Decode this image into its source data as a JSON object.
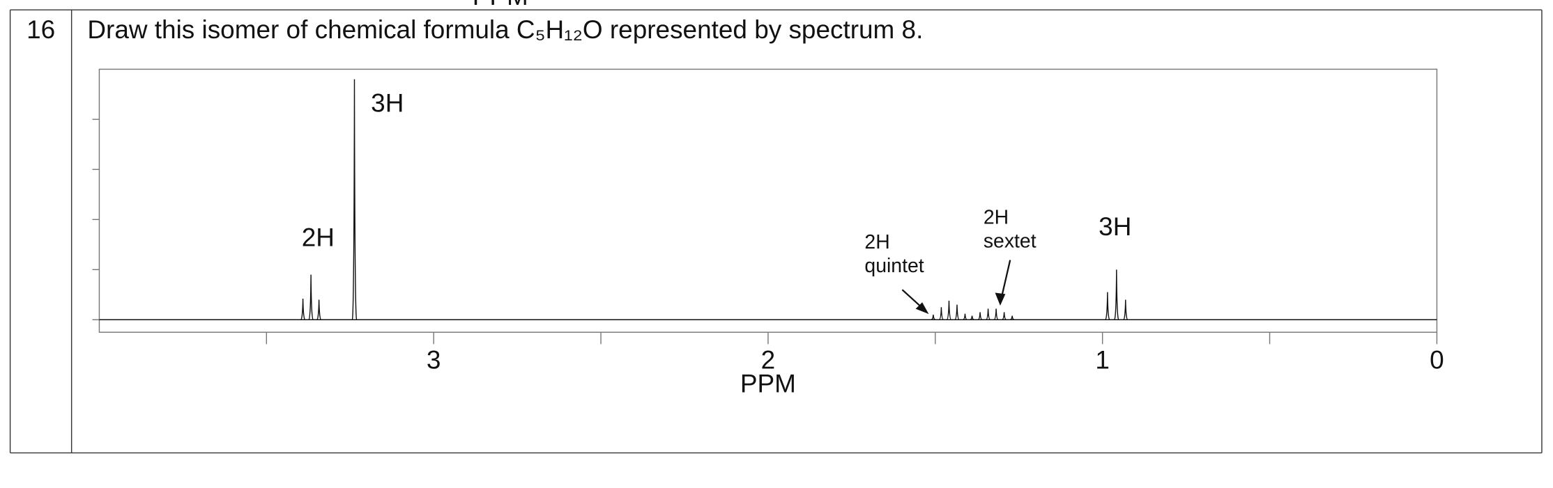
{
  "previous_row_fragment": "PPM",
  "row": {
    "number": "16",
    "question": "Draw this isomer of chemical formula C₅H₁₂O represented by spectrum 8."
  },
  "spectrum": {
    "type": "line",
    "xlabel": "PPM",
    "xlim": [
      4,
      0
    ],
    "ylim": [
      -0.25,
      5
    ],
    "xticks": [
      0,
      1,
      2,
      3
    ],
    "minor_xticks": [
      0.5,
      1.5,
      2.5,
      3.5
    ],
    "yticks": [
      0,
      1,
      2,
      3,
      4
    ],
    "color": "#111111",
    "peaks": [
      {
        "ppm": [
          3.391,
          3.367,
          3.343
        ],
        "heights": [
          0.42,
          0.9,
          0.4
        ]
      },
      {
        "ppm": [
          3.237
        ],
        "heights": [
          4.8
        ]
      },
      {
        "ppm": [
          1.506,
          1.482,
          1.459,
          1.435,
          1.411
        ],
        "heights": [
          0.1,
          0.25,
          0.38,
          0.3,
          0.12
        ]
      },
      {
        "ppm": [
          1.39,
          1.366,
          1.342,
          1.318,
          1.294,
          1.27
        ],
        "heights": [
          0.08,
          0.15,
          0.22,
          0.22,
          0.15,
          0.08
        ]
      },
      {
        "ppm": [
          0.985,
          0.958,
          0.931
        ],
        "heights": [
          0.55,
          1.0,
          0.4
        ]
      }
    ],
    "annotations": [
      {
        "lines": [
          "2H"
        ]
      },
      {
        "lines": [
          "3H"
        ]
      },
      {
        "lines": [
          "2H",
          "quintet"
        ]
      },
      {
        "lines": [
          "2H",
          "sextet"
        ]
      },
      {
        "lines": [
          "3H"
        ]
      }
    ]
  }
}
